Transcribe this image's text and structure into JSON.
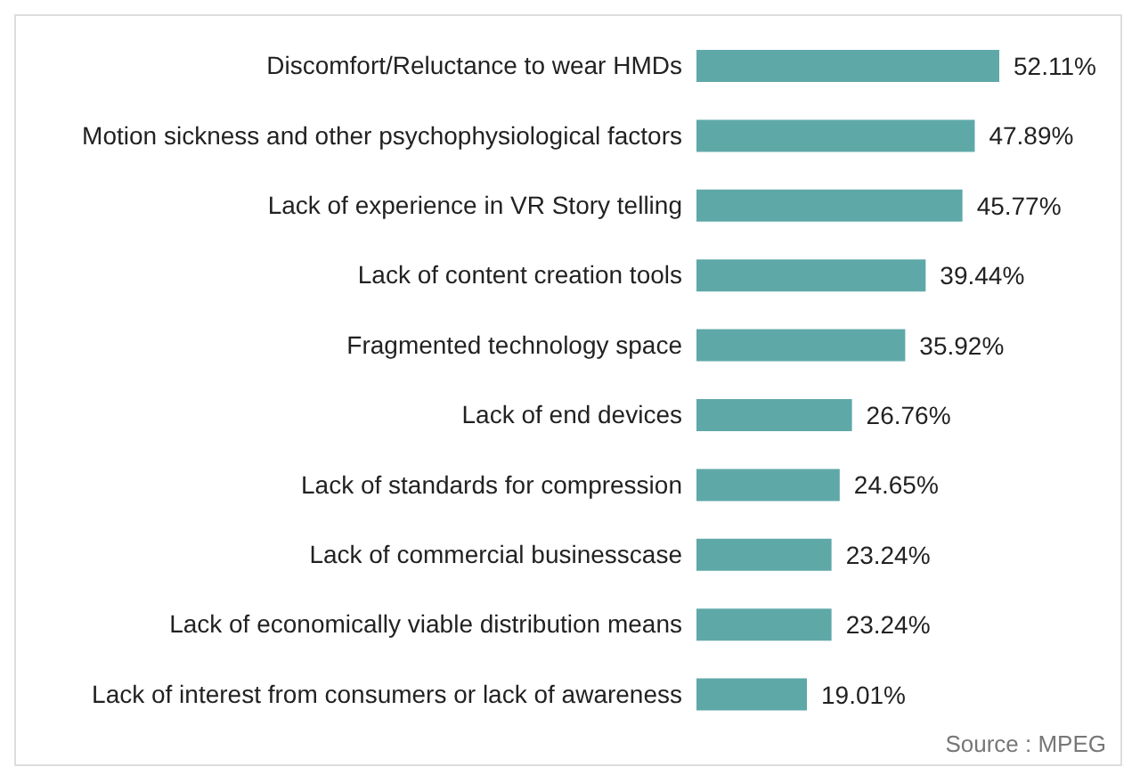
{
  "chart_data": {
    "type": "bar",
    "orientation": "horizontal",
    "categories": [
      "Discomfort/Reluctance to wear HMDs",
      "Motion sickness and other psychophysiological factors",
      "Lack of experience in VR Story telling",
      "Lack of content creation tools",
      "Fragmented technology space",
      "Lack of end devices",
      "Lack of standards for compression",
      "Lack of commercial businesscase",
      "Lack of economically viable distribution means",
      "Lack of interest from consumers or lack of awareness"
    ],
    "values": [
      52.11,
      47.89,
      45.77,
      39.44,
      35.92,
      26.76,
      24.65,
      23.24,
      23.24,
      19.01
    ],
    "value_labels": [
      "52.11%",
      "47.89%",
      "45.77%",
      "39.44%",
      "35.92%",
      "26.76%",
      "24.65%",
      "23.24%",
      "23.24%",
      "19.01%"
    ],
    "color": "#5fa8a8",
    "annotations": [
      "Source : MPEG"
    ]
  }
}
